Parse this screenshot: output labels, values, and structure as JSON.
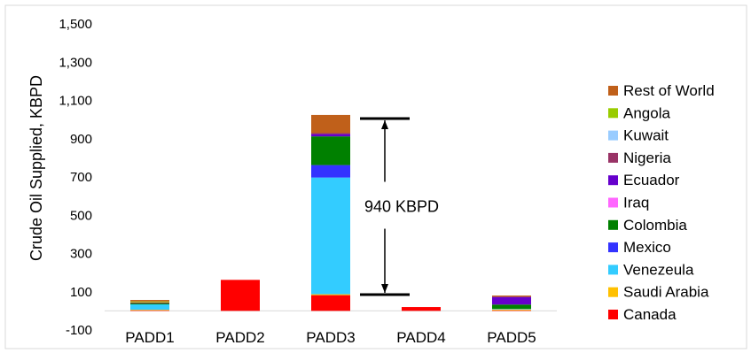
{
  "chart_data": {
    "type": "bar",
    "stacked": true,
    "title": "",
    "xlabel": "",
    "ylabel": "Crude Oil Supplied, KBPD",
    "ylim": [
      -100,
      1500
    ],
    "yticks": [
      -100,
      100,
      300,
      500,
      700,
      900,
      1100,
      1300,
      1500
    ],
    "ytick_labels": [
      "-100",
      "100",
      "300",
      "500",
      "700",
      "900",
      "1,100",
      "1,300",
      "1,500"
    ],
    "grid": false,
    "legend_position": "right",
    "categories": [
      "PADD1",
      "PADD2",
      "PADD3",
      "PADD4",
      "PADD5"
    ],
    "series": [
      {
        "name": "Canada",
        "color": "#ff0000",
        "values": [
          3,
          162,
          82,
          20,
          3
        ]
      },
      {
        "name": "Saudi Arabia",
        "color": "#ffc000",
        "values": [
          3,
          0,
          5,
          0,
          5
        ]
      },
      {
        "name": "Venezeula",
        "color": "#33ccff",
        "values": [
          28,
          0,
          610,
          0,
          3
        ]
      },
      {
        "name": "Mexico",
        "color": "#3333ff",
        "values": [
          0,
          0,
          65,
          0,
          0
        ]
      },
      {
        "name": "Colombia",
        "color": "#008000",
        "values": [
          5,
          0,
          150,
          0,
          22
        ]
      },
      {
        "name": "Iraq",
        "color": "#ff66ff",
        "values": [
          0,
          0,
          0,
          0,
          0
        ]
      },
      {
        "name": "Ecuador",
        "color": "#6600cc",
        "values": [
          0,
          0,
          12,
          0,
          40
        ]
      },
      {
        "name": "Nigeria",
        "color": "#993366",
        "values": [
          5,
          0,
          5,
          0,
          0
        ]
      },
      {
        "name": "Kuwait",
        "color": "#99ccff",
        "values": [
          0,
          0,
          0,
          0,
          0
        ]
      },
      {
        "name": "Angola",
        "color": "#99cc00",
        "values": [
          5,
          0,
          0,
          0,
          0
        ]
      },
      {
        "name": "Rest of World",
        "color": "#c0601a",
        "values": [
          8,
          0,
          95,
          0,
          7
        ]
      }
    ],
    "annotations": [
      {
        "text": "940 KBPD",
        "category": "PADD3",
        "from": 85,
        "to": 1005
      }
    ]
  }
}
